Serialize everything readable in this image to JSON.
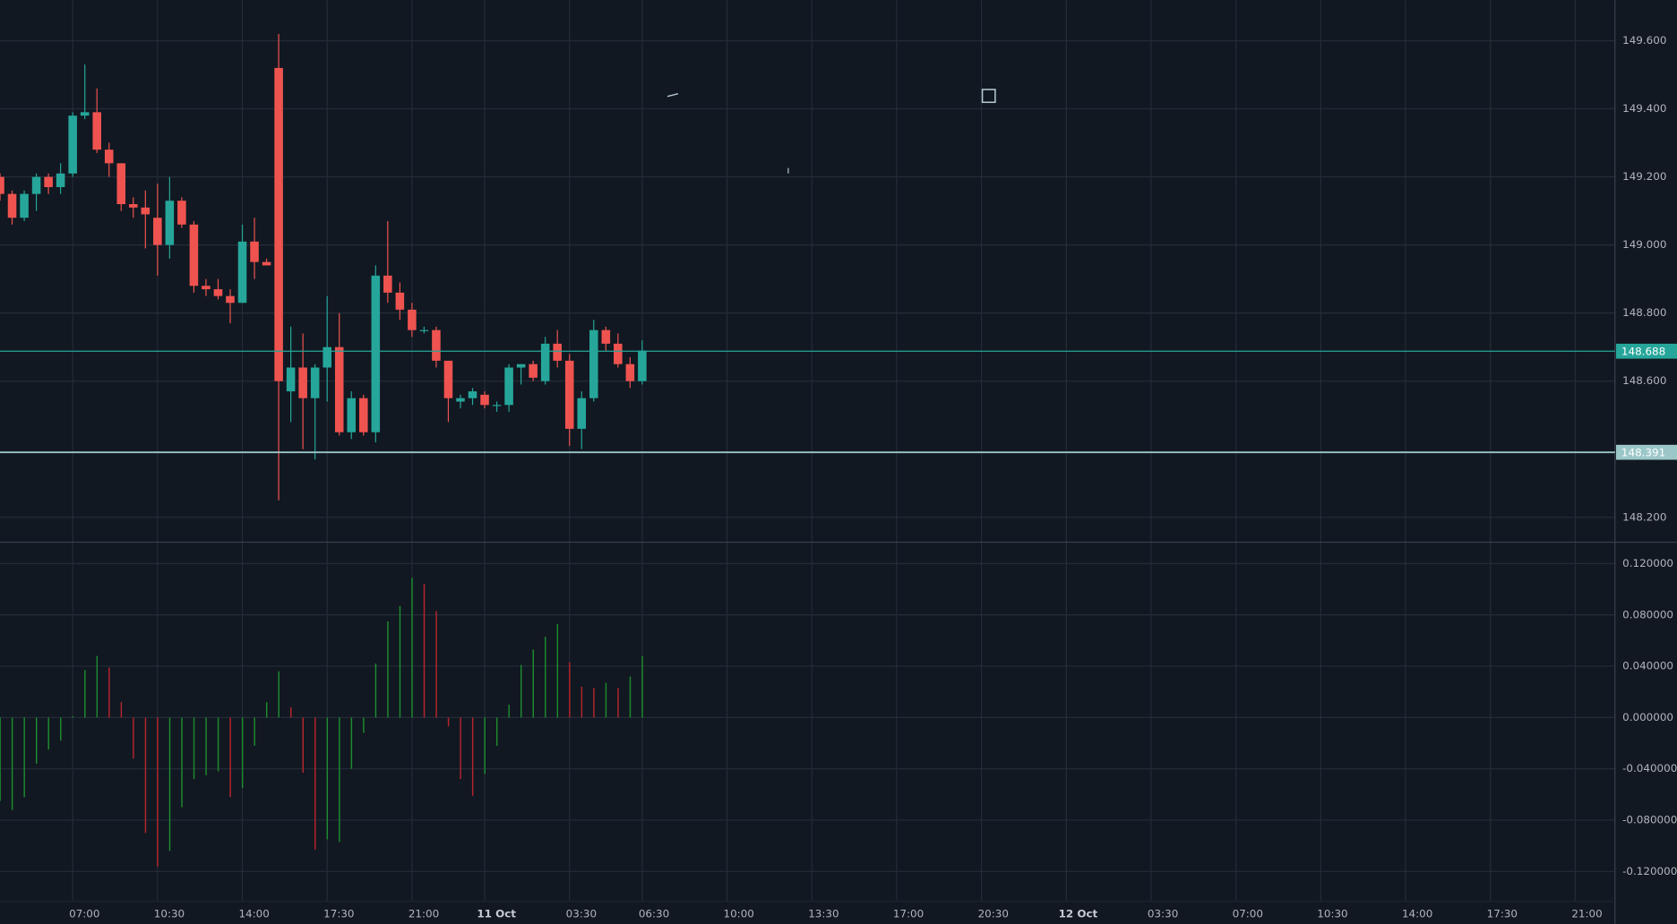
{
  "chart_data": [
    {
      "type": "candlestick",
      "x": [
        4,
        4.5,
        5,
        5.5,
        6,
        6.5,
        7,
        7.5,
        8,
        8.5,
        9,
        9.5,
        10,
        10.5,
        11,
        11.5,
        12,
        12.5,
        13,
        13.5,
        14,
        14.5,
        15,
        15.5,
        16,
        16.5,
        17,
        17.5,
        18,
        18.5,
        19,
        19.5,
        20,
        20.5,
        21,
        21.5,
        22,
        22.5,
        23,
        23.5,
        24,
        24.5,
        25,
        25.5,
        26,
        26.5,
        27,
        27.5,
        28,
        28.5,
        29,
        29.5,
        30,
        30.5
      ],
      "open": [
        149.2,
        149.15,
        149.08,
        149.15,
        149.2,
        149.17,
        149.21,
        149.38,
        149.39,
        149.28,
        149.24,
        149.12,
        149.11,
        149.08,
        149.0,
        149.13,
        149.06,
        148.88,
        148.87,
        148.85,
        148.83,
        149.01,
        148.95,
        149.52,
        148.57,
        148.64,
        148.55,
        148.64,
        148.7,
        148.45,
        148.55,
        148.45,
        148.91,
        148.86,
        148.81,
        148.75,
        148.75,
        148.66,
        148.54,
        148.55,
        148.56,
        148.53,
        148.53,
        148.64,
        148.65,
        148.6,
        148.71,
        148.66,
        148.46,
        148.55,
        148.75,
        148.71,
        148.65,
        148.6
      ],
      "high": [
        149.21,
        149.16,
        149.16,
        149.21,
        149.21,
        149.24,
        149.39,
        149.53,
        149.46,
        149.3,
        149.24,
        149.14,
        149.16,
        149.18,
        149.2,
        149.14,
        149.07,
        148.9,
        148.9,
        148.87,
        149.06,
        149.08,
        148.96,
        149.62,
        148.76,
        148.74,
        148.65,
        148.85,
        148.8,
        148.57,
        148.56,
        148.94,
        149.07,
        148.89,
        148.83,
        148.76,
        148.76,
        148.66,
        148.56,
        148.58,
        148.57,
        148.54,
        148.65,
        148.65,
        148.66,
        148.73,
        148.75,
        148.68,
        148.57,
        148.78,
        148.76,
        148.74,
        148.67,
        148.72
      ],
      "low": [
        149.13,
        149.06,
        149.07,
        149.1,
        149.15,
        149.15,
        149.2,
        149.37,
        149.27,
        149.2,
        149.1,
        149.08,
        148.99,
        148.91,
        148.96,
        149.05,
        148.86,
        148.85,
        148.84,
        148.77,
        148.83,
        148.9,
        148.94,
        148.25,
        148.48,
        148.4,
        148.37,
        148.54,
        148.44,
        148.43,
        148.44,
        148.42,
        148.83,
        148.78,
        148.73,
        148.74,
        148.64,
        148.48,
        148.52,
        148.53,
        148.52,
        148.51,
        148.51,
        148.59,
        148.6,
        148.59,
        148.64,
        148.41,
        148.4,
        148.54,
        148.69,
        148.64,
        148.58,
        148.59
      ],
      "close": [
        149.15,
        149.08,
        149.15,
        149.2,
        149.17,
        149.21,
        149.38,
        149.39,
        149.28,
        149.24,
        149.12,
        149.11,
        149.09,
        149.0,
        149.13,
        149.06,
        148.88,
        148.87,
        148.85,
        148.83,
        149.01,
        148.95,
        148.94,
        148.6,
        148.64,
        148.55,
        148.64,
        148.7,
        148.45,
        148.55,
        148.45,
        148.91,
        148.86,
        148.81,
        148.75,
        148.75,
        148.66,
        148.55,
        148.55,
        148.57,
        148.53,
        148.53,
        148.64,
        148.65,
        148.61,
        148.71,
        148.66,
        148.46,
        148.55,
        148.75,
        148.71,
        148.65,
        148.6,
        148.69
      ],
      "up_color": "#26a69a",
      "down_color": "#ef5350",
      "xlim": [
        4,
        70.64
      ],
      "ylim": [
        148.127,
        149.719
      ],
      "yticks": [
        {
          "value": 148.2,
          "label": "148.200"
        },
        {
          "value": 148.6,
          "label": "148.600"
        },
        {
          "value": 148.8,
          "label": "148.800"
        },
        {
          "value": 149.0,
          "label": "149.000"
        },
        {
          "value": 149.2,
          "label": "149.200"
        },
        {
          "value": 149.4,
          "label": "149.400"
        },
        {
          "value": 149.6,
          "label": "149.600"
        }
      ],
      "price_lines": [
        {
          "value": 148.688,
          "color": "#26a69a"
        },
        {
          "value": 148.391,
          "color": "#9cc7c9"
        }
      ],
      "grid": true
    },
    {
      "type": "bar",
      "x": [
        4,
        4.5,
        5,
        5.5,
        6,
        6.5,
        7,
        7.5,
        8,
        8.5,
        9,
        9.5,
        10,
        10.5,
        11,
        11.5,
        12,
        12.5,
        13,
        13.5,
        14,
        14.5,
        15,
        15.5,
        16,
        16.5,
        17,
        17.5,
        18,
        18.5,
        19,
        19.5,
        20,
        20.5,
        21,
        21.5,
        22,
        22.5,
        23,
        23.5,
        24,
        24.5,
        25,
        25.5,
        26,
        26.5,
        27,
        27.5,
        28,
        28.5,
        29,
        29.5,
        30,
        30.5
      ],
      "values": [
        -0.065,
        -0.072,
        -0.062,
        -0.036,
        -0.025,
        -0.018,
        0.001,
        0.037,
        0.048,
        0.039,
        0.012,
        -0.032,
        -0.09,
        -0.116,
        -0.104,
        -0.07,
        -0.048,
        -0.045,
        -0.042,
        -0.062,
        -0.055,
        -0.022,
        0.012,
        0.036,
        0.008,
        -0.043,
        -0.103,
        -0.095,
        -0.097,
        -0.04,
        -0.012,
        0.042,
        0.075,
        0.087,
        0.109,
        0.104,
        0.083,
        -0.007,
        -0.048,
        -0.061,
        -0.044,
        -0.022,
        0.01,
        0.041,
        0.053,
        0.063,
        0.073,
        0.043,
        0.024,
        0.023,
        0.027,
        0.023,
        0.032,
        0.048
      ],
      "colors": [
        "#1e8c2f",
        "#1e8c2f",
        "#1e8c2f",
        "#1e8c2f",
        "#1e8c2f",
        "#1e8c2f",
        "#1e8c2f",
        "#1e8c2f",
        "#1e8c2f",
        "#b8252e",
        "#b8252e",
        "#b8252e",
        "#b8252e",
        "#b8252e",
        "#1e8c2f",
        "#1e8c2f",
        "#1e8c2f",
        "#1e8c2f",
        "#1e8c2f",
        "#b8252e",
        "#1e8c2f",
        "#1e8c2f",
        "#1e8c2f",
        "#1e8c2f",
        "#b8252e",
        "#b8252e",
        "#b8252e",
        "#1e8c2f",
        "#1e8c2f",
        "#1e8c2f",
        "#1e8c2f",
        "#1e8c2f",
        "#1e8c2f",
        "#1e8c2f",
        "#1e8c2f",
        "#b8252e",
        "#b8252e",
        "#b8252e",
        "#b8252e",
        "#b8252e",
        "#1e8c2f",
        "#1e8c2f",
        "#1e8c2f",
        "#1e8c2f",
        "#1e8c2f",
        "#1e8c2f",
        "#1e8c2f",
        "#b8252e",
        "#b8252e",
        "#b8252e",
        "#1e8c2f",
        "#b8252e",
        "#1e8c2f",
        "#1e8c2f"
      ],
      "xlim": [
        4,
        70.64
      ],
      "ylim": [
        -0.1433,
        0.1367
      ],
      "yticks": [
        {
          "value": -0.12,
          "label": "-0.120000"
        },
        {
          "value": -0.08,
          "label": "-0.080000"
        },
        {
          "value": -0.04,
          "label": "-0.040000"
        },
        {
          "value": 0,
          "label": "0.000000"
        },
        {
          "value": 0.04,
          "label": "0.040000"
        },
        {
          "value": 0.08,
          "label": "0.080000"
        },
        {
          "value": 0.12,
          "label": "0.120000"
        }
      ],
      "xticks": [
        {
          "value": 7,
          "label": "07:00"
        },
        {
          "value": 10.5,
          "label": "10:30"
        },
        {
          "value": 14,
          "label": "14:00"
        },
        {
          "value": 17.5,
          "label": "17:30"
        },
        {
          "value": 21,
          "label": "21:00"
        },
        {
          "value": 24,
          "label": "11 Oct"
        },
        {
          "value": 27.5,
          "label": "03:30"
        },
        {
          "value": 30.5,
          "label": "06:30"
        },
        {
          "value": 34,
          "label": "10:00"
        },
        {
          "value": 37.5,
          "label": "13:30"
        },
        {
          "value": 41,
          "label": "17:00"
        },
        {
          "value": 44.5,
          "label": "20:30"
        },
        {
          "value": 48,
          "label": "12 Oct"
        },
        {
          "value": 51.5,
          "label": "03:30"
        },
        {
          "value": 55,
          "label": "07:00"
        },
        {
          "value": 58.5,
          "label": "10:30"
        },
        {
          "value": 62,
          "label": "14:00"
        },
        {
          "value": 65.5,
          "label": "17:30"
        },
        {
          "value": 69,
          "label": "21:00"
        }
      ],
      "grid": true
    }
  ]
}
